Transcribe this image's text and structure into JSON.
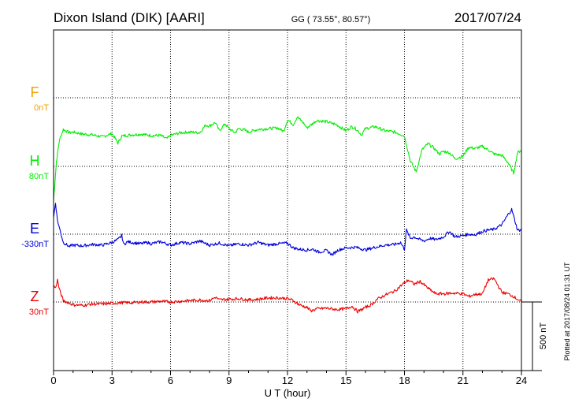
{
  "header": {
    "station": "Dixon Island (DIK)  [AARI]",
    "coords": "GG ( 73.55°,  80.57°)",
    "date": "2017/07/24"
  },
  "plotted_note": "Plotted at 2017/08/24 01:31  UT",
  "scale_bar_label": "500 nT",
  "colors": {
    "F": "#f0a000",
    "H": "#00ee00",
    "E": "#0000dd",
    "Z": "#ee0000"
  },
  "chart_data": {
    "type": "line",
    "xlabel": "U T (hour)",
    "xlim": [
      0,
      24
    ],
    "x_ticks": [
      "0",
      "3",
      "6",
      "9",
      "12",
      "15",
      "18",
      "21",
      "24"
    ],
    "scale_nT_per_division": 500,
    "grid": true,
    "components": [
      {
        "name": "F",
        "baseline": "0nT"
      },
      {
        "name": "H",
        "baseline": "80nT"
      },
      {
        "name": "E",
        "baseline": "-330nT"
      },
      {
        "name": "Z",
        "baseline": "30nT"
      }
    ],
    "series": [
      {
        "name": "H",
        "x": [
          0,
          0.15,
          0.3,
          0.5,
          0.8,
          1,
          1.5,
          2,
          2.5,
          3,
          3.3,
          3.5,
          3.7,
          4,
          4.5,
          5,
          5.5,
          5.8,
          6,
          6.5,
          7,
          7.5,
          7.8,
          8,
          8.3,
          8.5,
          8.8,
          9,
          9.3,
          9.5,
          9.8,
          10,
          10.5,
          11,
          11.5,
          11.8,
          12,
          12.3,
          12.5,
          12.8,
          13,
          13.5,
          14,
          14.5,
          15,
          15.3,
          15.5,
          15.8,
          16,
          16.5,
          17,
          17.5,
          17.8,
          18,
          18.3,
          18.6,
          18.9,
          19.2,
          19.5,
          19.8,
          20,
          20.3,
          20.6,
          21,
          21.3,
          21.6,
          22,
          22.3,
          22.6,
          23,
          23.3,
          23.6,
          23.8,
          24
        ],
        "y": [
          -250,
          40,
          190,
          270,
          245,
          250,
          235,
          230,
          215,
          240,
          170,
          220,
          225,
          230,
          235,
          225,
          225,
          200,
          225,
          245,
          250,
          245,
          300,
          295,
          320,
          260,
          310,
          275,
          245,
          275,
          265,
          250,
          270,
          275,
          280,
          255,
          340,
          305,
          360,
          320,
          280,
          335,
          325,
          305,
          260,
          290,
          275,
          230,
          275,
          290,
          260,
          250,
          235,
          220,
          40,
          -40,
          120,
          165,
          135,
          90,
          110,
          100,
          55,
          75,
          140,
          130,
          145,
          120,
          90,
          80,
          30,
          -50,
          100,
          120
        ]
      },
      {
        "name": "E",
        "x": [
          0,
          0.1,
          0.2,
          0.35,
          0.5,
          0.8,
          1,
          1.5,
          2,
          2.5,
          3,
          3.3,
          3.5,
          3.6,
          3.8,
          4,
          4.5,
          4.8,
          5,
          5.5,
          6,
          6.5,
          7,
          7.5,
          8,
          8.5,
          9,
          9.5,
          10,
          10.5,
          11,
          11.5,
          12,
          12.3,
          12.6,
          13,
          13.3,
          13.6,
          14,
          14.3,
          14.6,
          15,
          15.5,
          16,
          16.5,
          17,
          17.5,
          17.8,
          18,
          18.1,
          18.3,
          18.5,
          18.8,
          19,
          19.3,
          19.6,
          20,
          20.3,
          20.6,
          21,
          21.3,
          21.6,
          22,
          22.3,
          22.6,
          23,
          23.3,
          23.5,
          23.8,
          24
        ],
        "y": [
          120,
          230,
          100,
          20,
          -60,
          -90,
          -80,
          -85,
          -75,
          -80,
          -60,
          -40,
          -10,
          -75,
          -55,
          -60,
          -70,
          -60,
          -70,
          -55,
          -80,
          -60,
          -70,
          -50,
          -80,
          -65,
          -85,
          -70,
          -80,
          -60,
          -80,
          -70,
          -65,
          -100,
          -110,
          -115,
          -110,
          -130,
          -120,
          -150,
          -115,
          -100,
          -95,
          -115,
          -95,
          -80,
          -75,
          -60,
          -110,
          30,
          -30,
          -20,
          -40,
          -50,
          -30,
          -40,
          -20,
          20,
          -20,
          -10,
          0,
          -5,
          20,
          30,
          35,
          70,
          140,
          180,
          30,
          30
        ]
      },
      {
        "name": "Z",
        "x": [
          0,
          0.1,
          0.2,
          0.3,
          0.5,
          1,
          1.5,
          2,
          2.5,
          3,
          3.5,
          4,
          4.5,
          5,
          5.5,
          6,
          6.5,
          7,
          7.5,
          8,
          8.3,
          8.5,
          9,
          9.5,
          10,
          10.5,
          11,
          11.5,
          12,
          12.3,
          12.6,
          13,
          13.2,
          13.5,
          14,
          14.5,
          15,
          15.3,
          15.6,
          16,
          16.3,
          16.6,
          17,
          17.5,
          18,
          18.2,
          18.5,
          18.8,
          19,
          19.3,
          19.6,
          20,
          20.5,
          21,
          21.3,
          21.6,
          22,
          22.3,
          22.6,
          23,
          23.3,
          23.6,
          24
        ],
        "y": [
          120,
          100,
          160,
          90,
          10,
          -20,
          -25,
          -15,
          -15,
          -10,
          -5,
          -5,
          0,
          0,
          5,
          0,
          5,
          10,
          15,
          10,
          35,
          15,
          20,
          25,
          15,
          20,
          30,
          30,
          25,
          10,
          -20,
          -40,
          -65,
          -50,
          -45,
          -55,
          -50,
          -30,
          -70,
          -40,
          -20,
          20,
          50,
          80,
          140,
          160,
          130,
          150,
          125,
          90,
          60,
          60,
          65,
          60,
          40,
          55,
          60,
          160,
          170,
          70,
          60,
          40,
          0
        ]
      }
    ]
  }
}
